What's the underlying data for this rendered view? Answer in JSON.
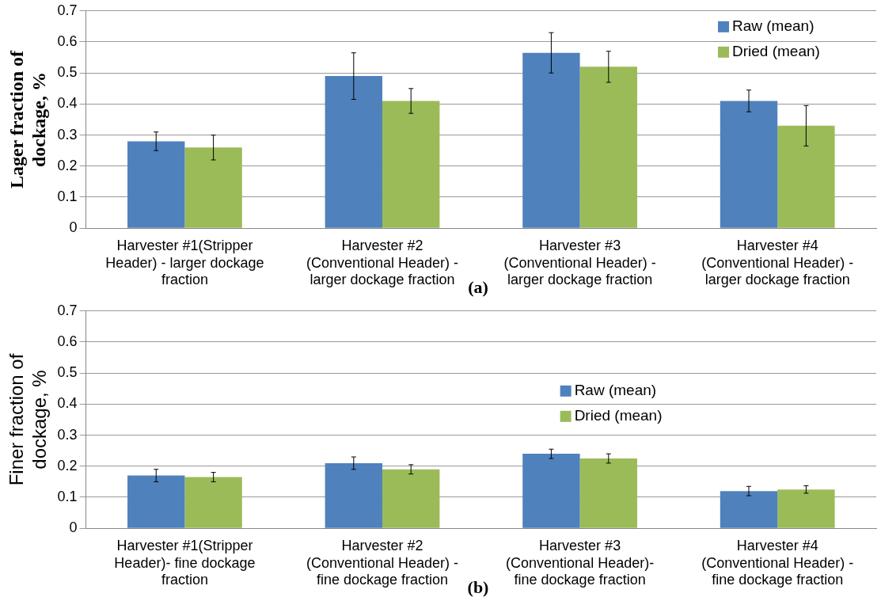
{
  "chart_data": [
    {
      "type": "bar",
      "ylabel": "Lager fraction of dockage, %",
      "categories": [
        "Harvester #1(Stripper Header) - larger dockage fraction",
        "Harvester #2 (Conventional Header) - larger dockage fraction",
        "Harvester #3 (Conventional Header) - larger dockage fraction",
        "Harvester #4 (Conventional Header) - larger dockage fraction"
      ],
      "series": [
        {
          "name": "Raw (mean)",
          "color": "#4f81bd",
          "values": [
            0.28,
            0.49,
            0.565,
            0.41
          ],
          "errors": [
            0.03,
            0.075,
            0.065,
            0.035
          ]
        },
        {
          "name": "Dried (mean)",
          "color": "#9bbb59",
          "values": [
            0.26,
            0.41,
            0.52,
            0.33
          ],
          "errors": [
            0.04,
            0.04,
            0.05,
            0.065
          ]
        }
      ],
      "ylim": [
        0,
        0.7
      ],
      "yticks": [
        0,
        0.1,
        0.2,
        0.3,
        0.4,
        0.5,
        0.6,
        0.7
      ],
      "grid": "y",
      "legend": "top right",
      "annotations": [
        "(a)"
      ]
    },
    {
      "type": "bar",
      "ylabel": "Finer fraction of dockage, %",
      "categories": [
        "Harvester #1(Stripper Header)- fine dockage fraction",
        "Harvester #2 (Conventional Header) - fine dockage fraction",
        "Harvester #3 (Conventional Header)- fine dockage fraction",
        "Harvester #4 (Conventional Header) - fine dockage fraction"
      ],
      "series": [
        {
          "name": "Raw (mean)",
          "color": "#4f81bd",
          "values": [
            0.17,
            0.21,
            0.24,
            0.12
          ],
          "errors": [
            0.02,
            0.02,
            0.015,
            0.015
          ]
        },
        {
          "name": "Dried (mean)",
          "color": "#9bbb59",
          "values": [
            0.165,
            0.19,
            0.225,
            0.125
          ],
          "errors": [
            0.015,
            0.015,
            0.015,
            0.012
          ]
        }
      ],
      "ylim": [
        0,
        0.7
      ],
      "yticks": [
        0,
        0.1,
        0.2,
        0.3,
        0.4,
        0.5,
        0.6,
        0.7
      ],
      "grid": "y",
      "legend": "top",
      "annotations": [
        "(b)"
      ]
    }
  ]
}
